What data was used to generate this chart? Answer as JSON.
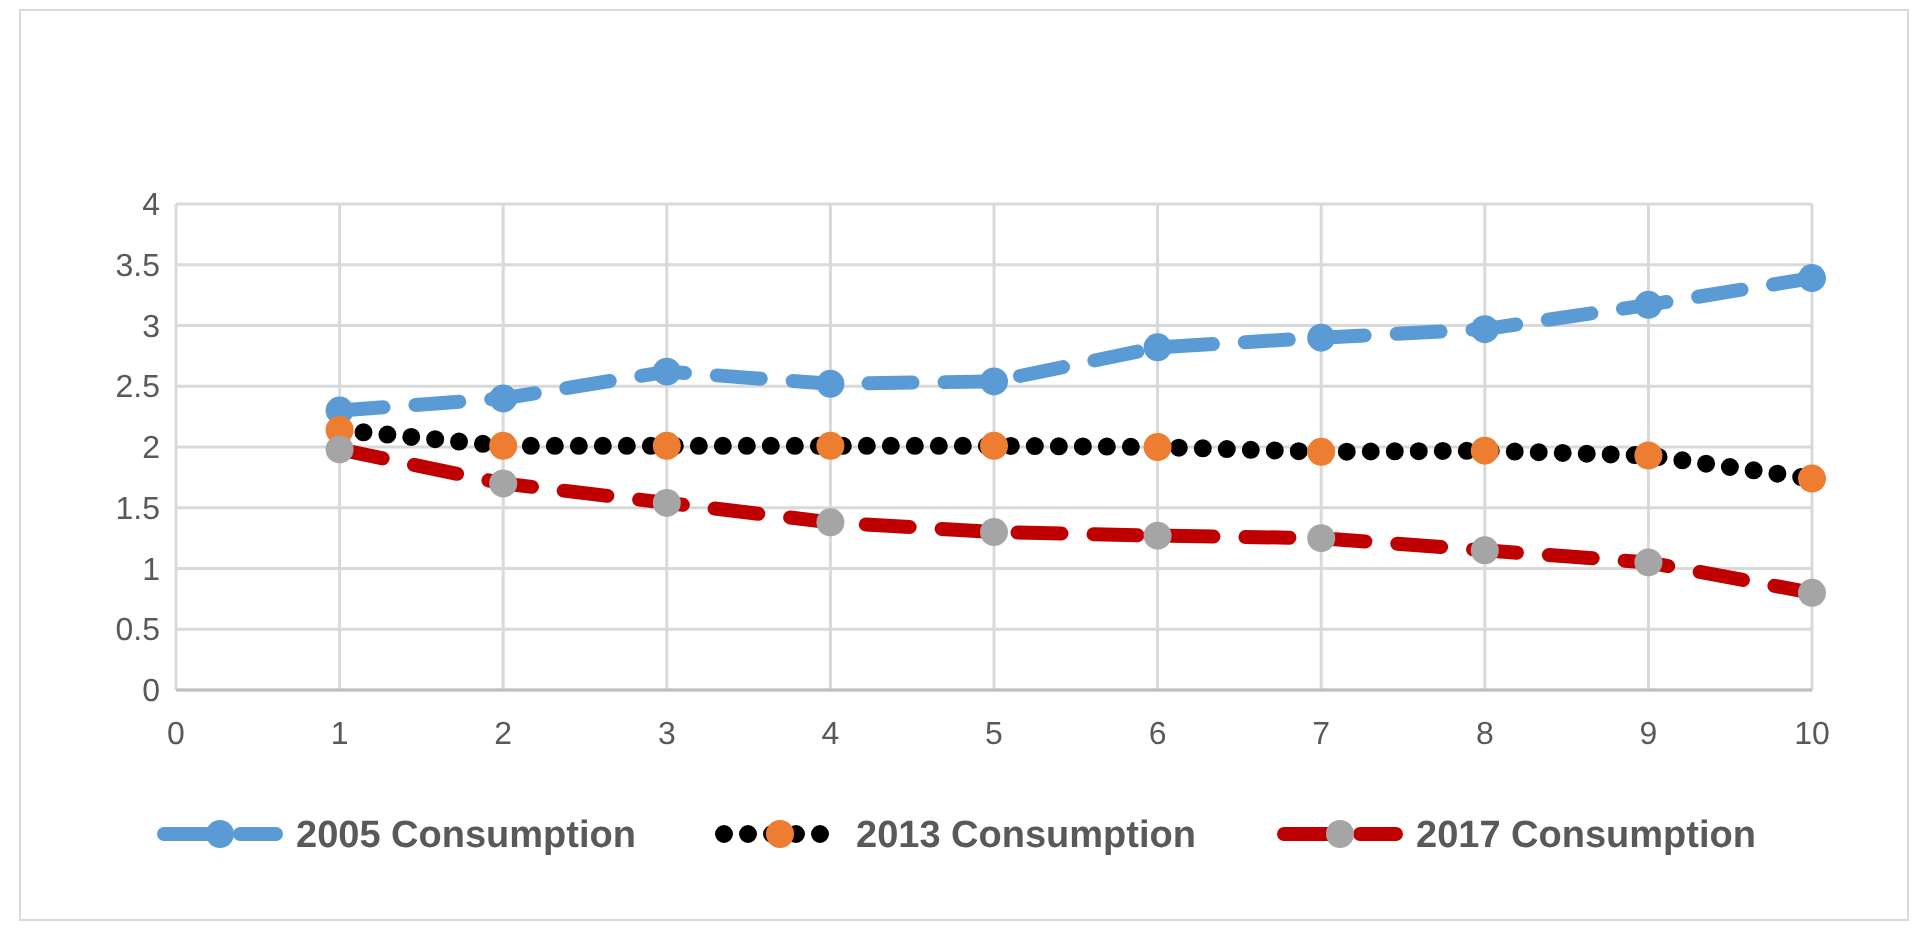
{
  "chart_data": {
    "type": "line",
    "x": [
      1,
      2,
      3,
      4,
      5,
      6,
      7,
      8,
      9,
      10
    ],
    "series": [
      {
        "name": "2005 Consumption",
        "color": "#5b9bd5",
        "colors": [
          "#5b9bd5",
          "#5b9bd5",
          "#5b9bd5",
          "#5b9bd5",
          "#5b9bd5",
          "#5b9bd5",
          "#5b9bd5",
          "#5b9bd5",
          "#5b9bd5",
          "#5b9bd5"
        ],
        "line_style": "dashed",
        "values": [
          2.3,
          2.4,
          2.62,
          2.52,
          2.54,
          2.82,
          2.9,
          2.97,
          3.17,
          3.39
        ]
      },
      {
        "name": "2013 Consumption",
        "color": "#000000",
        "colors": [
          "#ed7d31",
          "#ed7d31",
          "#ed7d31",
          "#ed7d31",
          "#ed7d31",
          "#ed7d31",
          "#ed7d31",
          "#ed7d31",
          "#ed7d31",
          "#ed7d31"
        ],
        "line_style": "dotted",
        "values": [
          2.14,
          2.01,
          2.01,
          2.01,
          2.01,
          2.0,
          1.96,
          1.97,
          1.93,
          1.74
        ]
      },
      {
        "name": "2017 Consumption",
        "color": "#c00000",
        "colors": [
          "#a5a5a5",
          "#a5a5a5",
          "#a5a5a5",
          "#a5a5a5",
          "#a5a5a5",
          "#a5a5a5",
          "#a5a5a5",
          "#a5a5a5",
          "#a5a5a5",
          "#a5a5a5"
        ],
        "line_style": "dashed",
        "values": [
          1.98,
          1.7,
          1.54,
          1.38,
          1.3,
          1.27,
          1.25,
          1.15,
          1.05,
          0.8
        ]
      }
    ],
    "xlim": [
      0,
      10
    ],
    "xticks": [
      0,
      1,
      2,
      3,
      4,
      5,
      6,
      7,
      8,
      9,
      10
    ],
    "ylim": [
      0,
      4
    ],
    "yticks": [
      0,
      {
        "value": 0.5,
        "label": "0.5"
      },
      1,
      {
        "value": 1.5,
        "label": "1.5"
      },
      2,
      {
        "value": 2.5,
        "label": "2.5"
      },
      3,
      {
        "value": 3.5,
        "label": "3.5"
      },
      4
    ],
    "grid": true,
    "legend": "bottom",
    "marker": "circle"
  }
}
